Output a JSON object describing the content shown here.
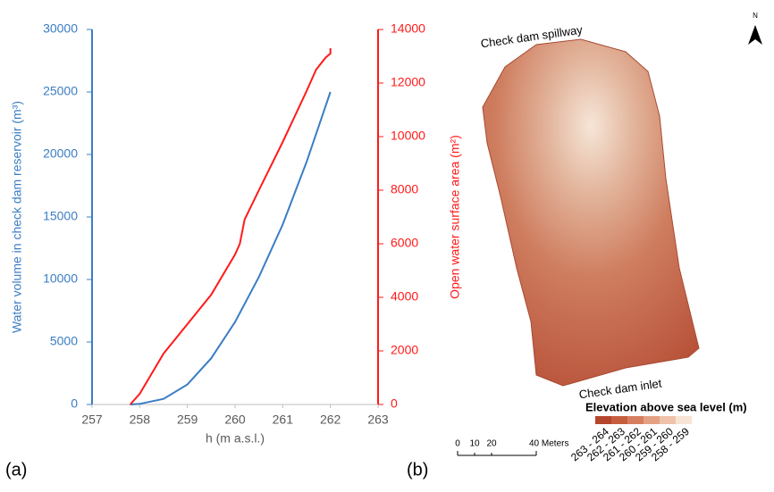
{
  "chart_data": {
    "type": "line",
    "x_label": "h (m a.s.l.)",
    "y_label": "Water volume in check dam reservoir (m³)",
    "y2_label": "Open water surface area (m²)",
    "xlim": [
      257,
      263
    ],
    "xticks": [
      257,
      258,
      259,
      260,
      261,
      262,
      263
    ],
    "ylim": [
      0,
      30000
    ],
    "yticks": [
      0,
      5000,
      10000,
      15000,
      20000,
      25000,
      30000
    ],
    "y2lim": [
      0,
      14000
    ],
    "y2ticks": [
      0,
      2000,
      4000,
      6000,
      8000,
      10000,
      12000,
      14000
    ],
    "series": [
      {
        "color": "#3b7dc4",
        "x": [
          257.8,
          258,
          258.5,
          259,
          259.5,
          260,
          260.5,
          261,
          261.5,
          262
        ],
        "values": [
          0,
          50,
          450,
          1600,
          3700,
          6600,
          10200,
          14400,
          19400,
          25000
        ]
      },
      {
        "color": "#ff1a1a",
        "axis": "y2",
        "x": [
          257.8,
          258,
          258.2,
          258.5,
          259,
          259.5,
          260,
          260.1,
          260.2,
          260.5,
          261,
          261.5,
          261.7,
          261.9,
          262,
          262
        ],
        "values": [
          0,
          400,
          1000,
          1900,
          3000,
          4100,
          5600,
          6000,
          6900,
          8000,
          9800,
          11700,
          12500,
          12950,
          13100,
          13300
        ]
      }
    ],
    "panel_label": "(a)"
  },
  "map": {
    "panel_label": "(b)",
    "north": "N",
    "spillway_label": "Check dam spillway",
    "inlet_label": "Check dam inlet",
    "legend_title": "Elevation above sea level (m)",
    "legend": [
      {
        "label": "263 - 264",
        "color": "#b4462b"
      },
      {
        "label": "262 - 263",
        "color": "#c65e3e"
      },
      {
        "label": "261 - 262",
        "color": "#d67e60"
      },
      {
        "label": "260 - 261",
        "color": "#e4a184"
      },
      {
        "label": "259 - 260",
        "color": "#efc3a9"
      },
      {
        "label": "258 - 259",
        "color": "#f8e4d5"
      }
    ],
    "scale_labels": [
      "0",
      "10",
      "20",
      "40 Meters"
    ]
  }
}
